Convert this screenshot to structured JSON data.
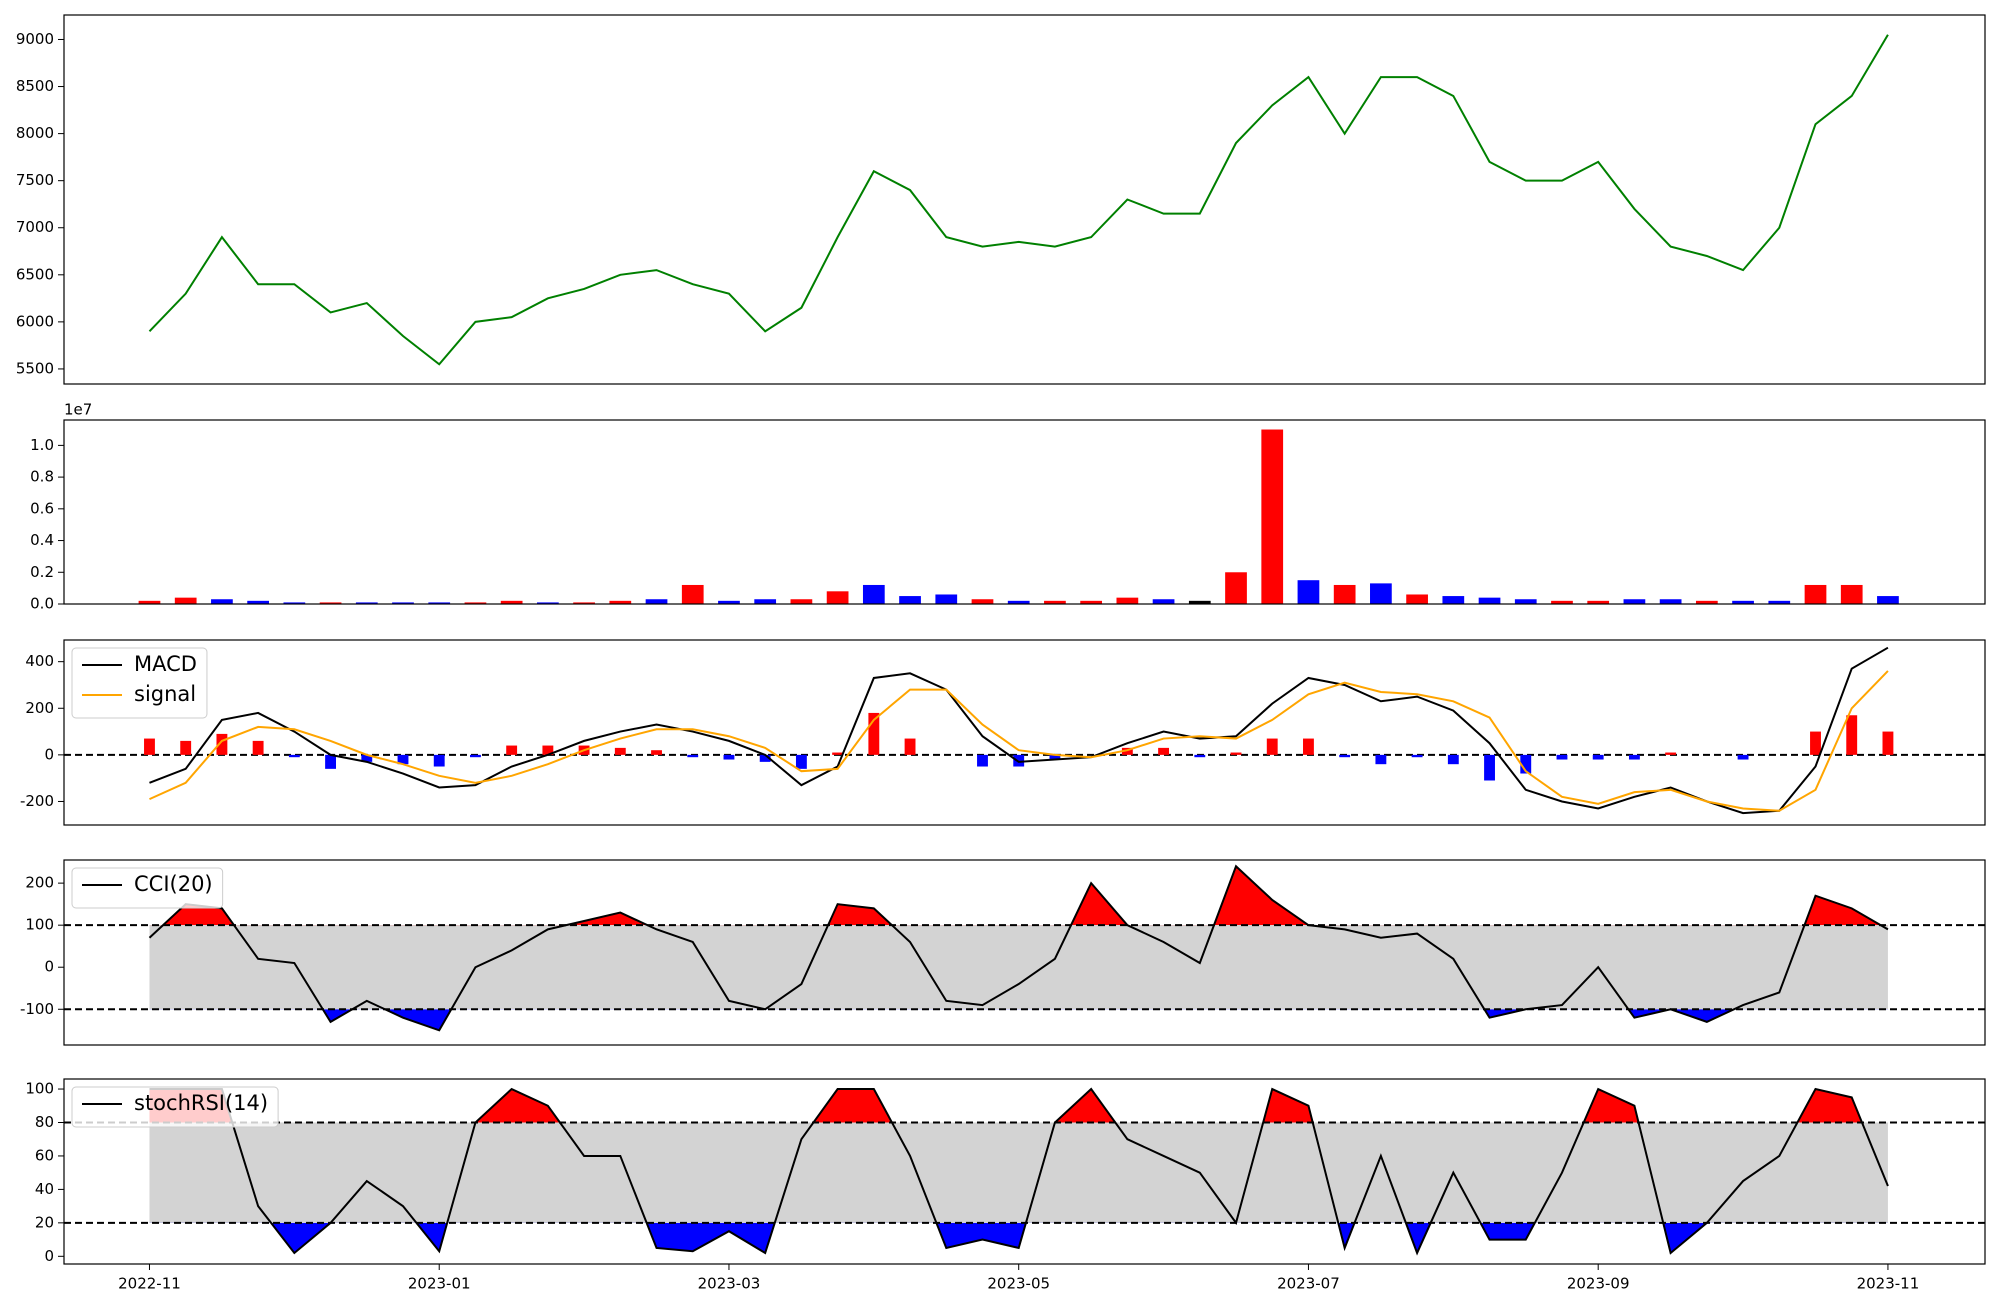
{
  "chart_data": [
    {
      "type": "line",
      "x": [
        0,
        0.25,
        0.5,
        0.75,
        1,
        1.25,
        1.5,
        1.75,
        2,
        2.25,
        2.5,
        2.75,
        3,
        3.25,
        3.5,
        3.75,
        4,
        4.25,
        4.5,
        4.75,
        5,
        5.25,
        5.5,
        5.75,
        6,
        6.25,
        6.5,
        6.75,
        7,
        7.25,
        7.5,
        7.75,
        8,
        8.25,
        8.5,
        8.75,
        9,
        9.25,
        9.5,
        9.75,
        10,
        10.25,
        10.5,
        10.75,
        11,
        11.25,
        11.5,
        11.75,
        12
      ],
      "series": [
        {
          "color": "#008000",
          "values": [
            5900,
            6300,
            6900,
            6400,
            6400,
            6100,
            6200,
            5850,
            5550,
            6000,
            6050,
            6250,
            6350,
            6500,
            6550,
            6400,
            6300,
            5900,
            6150,
            6900,
            7600,
            7400,
            6900,
            6800,
            6850,
            6800,
            6900,
            7300,
            7150,
            7150,
            7900,
            8300,
            8600,
            8000,
            8600,
            8600,
            8400,
            7700,
            7500,
            7500,
            7700,
            7200,
            6800,
            6700,
            6550,
            7000,
            8100,
            8400,
            9050
          ]
        }
      ],
      "xlim": [
        -0.59,
        12.67
      ],
      "ylim": [
        5340,
        9260
      ],
      "yticks": [
        5500,
        6000,
        6500,
        7000,
        7500,
        8000,
        8500,
        9000
      ]
    },
    {
      "type": "bar",
      "offset_label": "1e7",
      "x": [
        0,
        0.25,
        0.5,
        0.75,
        1,
        1.25,
        1.5,
        1.75,
        2,
        2.25,
        2.5,
        2.75,
        3,
        3.25,
        3.5,
        3.75,
        4,
        4.25,
        4.5,
        4.75,
        5,
        5.25,
        5.5,
        5.75,
        6,
        6.25,
        6.5,
        6.75,
        7,
        7.25,
        7.5,
        7.75,
        8,
        8.25,
        8.5,
        8.75,
        9,
        9.25,
        9.5,
        9.75,
        10,
        10.25,
        10.5,
        10.75,
        11,
        11.25,
        11.5,
        11.75,
        12
      ],
      "values": [
        0.02,
        0.04,
        0.03,
        0.02,
        0.01,
        0.01,
        0.01,
        0.01,
        0.01,
        0.01,
        0.02,
        0.01,
        0.01,
        0.02,
        0.03,
        0.12,
        0.02,
        0.03,
        0.03,
        0.08,
        0.12,
        0.05,
        0.06,
        0.03,
        0.02,
        0.02,
        0.02,
        0.04,
        0.03,
        0.02,
        0.2,
        1.1,
        0.15,
        0.12,
        0.13,
        0.06,
        0.05,
        0.04,
        0.03,
        0.02,
        0.02,
        0.03,
        0.03,
        0.02,
        0.02,
        0.02,
        0.12,
        0.12,
        0.05
      ],
      "colors": [
        "#ff0000",
        "#ff0000",
        "#0000ff",
        "#0000ff",
        "#0000ff",
        "#ff0000",
        "#0000ff",
        "#0000ff",
        "#0000ff",
        "#ff0000",
        "#ff0000",
        "#0000ff",
        "#ff0000",
        "#ff0000",
        "#0000ff",
        "#ff0000",
        "#0000ff",
        "#0000ff",
        "#ff0000",
        "#ff0000",
        "#0000ff",
        "#0000ff",
        "#0000ff",
        "#ff0000",
        "#0000ff",
        "#ff0000",
        "#ff0000",
        "#ff0000",
        "#0000ff",
        "#000000",
        "#ff0000",
        "#ff0000",
        "#0000ff",
        "#ff0000",
        "#0000ff",
        "#ff0000",
        "#0000ff",
        "#0000ff",
        "#0000ff",
        "#ff0000",
        "#ff0000",
        "#0000ff",
        "#0000ff",
        "#ff0000",
        "#0000ff",
        "#0000ff",
        "#ff0000",
        "#ff0000",
        "#0000ff"
      ],
      "xlim": [
        -0.59,
        12.67
      ],
      "ylim": [
        0,
        1.16
      ],
      "yticks": [
        {
          "value": 0,
          "label": "0.0"
        },
        {
          "value": 0.2,
          "label": "0.2"
        },
        {
          "value": 0.4,
          "label": "0.4"
        },
        {
          "value": 0.6,
          "label": "0.6"
        },
        {
          "value": 0.8,
          "label": "0.8"
        },
        {
          "value": 1,
          "label": "1.0"
        }
      ]
    },
    {
      "type": "line",
      "x": [
        0,
        0.25,
        0.5,
        0.75,
        1,
        1.25,
        1.5,
        1.75,
        2,
        2.25,
        2.5,
        2.75,
        3,
        3.25,
        3.5,
        3.75,
        4,
        4.25,
        4.5,
        4.75,
        5,
        5.25,
        5.5,
        5.75,
        6,
        6.25,
        6.5,
        6.75,
        7,
        7.25,
        7.5,
        7.75,
        8,
        8.25,
        8.5,
        8.75,
        9,
        9.25,
        9.5,
        9.75,
        10,
        10.25,
        10.5,
        10.75,
        11,
        11.25,
        11.5,
        11.75,
        12
      ],
      "series": [
        {
          "name": "MACD",
          "color": "#000000",
          "values": [
            -120,
            -60,
            150,
            180,
            100,
            0,
            -30,
            -80,
            -140,
            -130,
            -50,
            0,
            60,
            100,
            130,
            100,
            60,
            0,
            -130,
            -50,
            330,
            350,
            280,
            80,
            -30,
            -20,
            -10,
            50,
            100,
            70,
            80,
            220,
            330,
            300,
            230,
            250,
            190,
            50,
            -150,
            -200,
            -230,
            -180,
            -140,
            -200,
            -250,
            -240,
            -50,
            370,
            460
          ]
        },
        {
          "name": "signal",
          "color": "#ffa500",
          "values": [
            -190,
            -120,
            60,
            120,
            110,
            60,
            0,
            -40,
            -90,
            -120,
            -90,
            -40,
            20,
            70,
            110,
            110,
            80,
            30,
            -70,
            -60,
            150,
            280,
            280,
            130,
            20,
            0,
            -10,
            20,
            70,
            80,
            70,
            150,
            260,
            310,
            270,
            260,
            230,
            160,
            -70,
            -180,
            -210,
            -160,
            -150,
            -200,
            -230,
            -240,
            -150,
            200,
            360
          ]
        },
        {
          "type": "bar",
          "pos_color": "#ff0000",
          "neg_color": "#0000ff",
          "values": [
            70,
            60,
            90,
            60,
            -10,
            -60,
            -30,
            -40,
            -50,
            -10,
            40,
            40,
            40,
            30,
            20,
            -10,
            -20,
            -30,
            -60,
            10,
            180,
            70,
            0,
            -50,
            -50,
            -20,
            0,
            30,
            30,
            -10,
            10,
            70,
            70,
            -10,
            -40,
            -10,
            -40,
            -110,
            -80,
            -20,
            -20,
            -20,
            10,
            0,
            -20,
            0,
            100,
            170,
            100
          ]
        }
      ],
      "reference_lines": [
        0
      ],
      "legend": "upper left",
      "xlim": [
        -0.59,
        12.67
      ],
      "ylim": [
        -301,
        493
      ],
      "yticks": [
        -200,
        0,
        200,
        400
      ]
    },
    {
      "type": "line",
      "x": [
        0,
        0.25,
        0.5,
        0.75,
        1,
        1.25,
        1.5,
        1.75,
        2,
        2.25,
        2.5,
        2.75,
        3,
        3.25,
        3.5,
        3.75,
        4,
        4.25,
        4.5,
        4.75,
        5,
        5.25,
        5.5,
        5.75,
        6,
        6.25,
        6.5,
        6.75,
        7,
        7.25,
        7.5,
        7.75,
        8,
        8.25,
        8.5,
        8.75,
        9,
        9.25,
        9.5,
        9.75,
        10,
        10.25,
        10.5,
        10.75,
        11,
        11.25,
        11.5,
        11.75,
        12
      ],
      "series": [
        {
          "name": "CCI(20)",
          "color": "#000000",
          "values": [
            70,
            150,
            140,
            20,
            10,
            -130,
            -80,
            -120,
            -150,
            0,
            40,
            90,
            110,
            130,
            90,
            60,
            -80,
            -100,
            -40,
            150,
            140,
            60,
            -80,
            -90,
            -40,
            20,
            200,
            100,
            60,
            10,
            240,
            160,
            100,
            90,
            70,
            80,
            20,
            -120,
            -100,
            -90,
            0,
            -120,
            -100,
            -130,
            -90,
            -60,
            170,
            140,
            90
          ]
        }
      ],
      "thresholds": [
        -100,
        100
      ],
      "band_color": "#d3d3d3",
      "above_color": "#ff0000",
      "below_color": "#0000ff",
      "legend": "upper left",
      "xlim": [
        -0.59,
        12.67
      ],
      "ylim": [
        -185,
        255
      ],
      "yticks": [
        -100,
        0,
        100,
        200
      ]
    },
    {
      "type": "line",
      "x": [
        0,
        0.25,
        0.5,
        0.75,
        1,
        1.25,
        1.5,
        1.75,
        2,
        2.25,
        2.5,
        2.75,
        3,
        3.25,
        3.5,
        3.75,
        4,
        4.25,
        4.5,
        4.75,
        5,
        5.25,
        5.5,
        5.75,
        6,
        6.25,
        6.5,
        6.75,
        7,
        7.25,
        7.5,
        7.75,
        8,
        8.25,
        8.5,
        8.75,
        9,
        9.25,
        9.5,
        9.75,
        10,
        10.25,
        10.5,
        10.75,
        11,
        11.25,
        11.5,
        11.75,
        12
      ],
      "series": [
        {
          "name": "stochRSI(14)",
          "color": "#000000",
          "values": [
            100,
            100,
            100,
            30,
            2,
            20,
            45,
            30,
            3,
            80,
            100,
            90,
            60,
            60,
            5,
            3,
            15,
            2,
            70,
            100,
            100,
            60,
            5,
            10,
            5,
            80,
            100,
            70,
            60,
            50,
            20,
            100,
            90,
            5,
            60,
            2,
            50,
            10,
            10,
            50,
            100,
            90,
            2,
            20,
            45,
            60,
            100,
            95,
            42
          ]
        }
      ],
      "thresholds": [
        20,
        80
      ],
      "band_color": "#d3d3d3",
      "above_color": "#ff0000",
      "below_color": "#0000ff",
      "legend": "upper left",
      "xlim": [
        -0.59,
        12.67
      ],
      "ylim": [
        -4.6,
        106
      ],
      "yticks": [
        0,
        20,
        40,
        60,
        80,
        100
      ],
      "xticks": [
        {
          "value": 0,
          "label": "2022-11"
        },
        {
          "value": 2,
          "label": "2023-01"
        },
        {
          "value": 4,
          "label": "2023-03"
        },
        {
          "value": 6,
          "label": "2023-05"
        },
        {
          "value": 8,
          "label": "2023-07"
        },
        {
          "value": 10,
          "label": "2023-09"
        },
        {
          "value": 12,
          "label": "2023-11"
        }
      ]
    }
  ]
}
